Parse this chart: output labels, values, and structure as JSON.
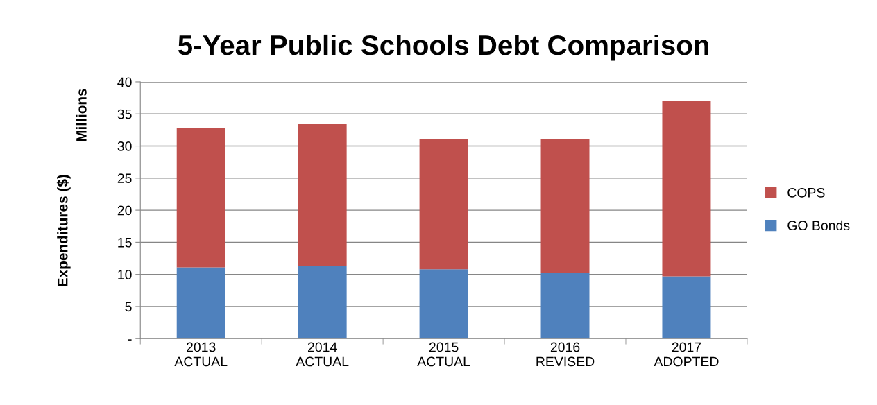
{
  "chart_data": {
    "type": "bar",
    "title": "5-Year Public Schools Debt Comparison",
    "ylabel": "Expenditures ($)",
    "annotations": [
      "Millions"
    ],
    "categories": [
      "2013\nACTUAL",
      "2014\nACTUAL",
      "2015\nACTUAL",
      "2016\nREVISED",
      "2017\nADOPTED"
    ],
    "stacked": true,
    "series": [
      {
        "name": "GO Bonds",
        "color": "#4f81bd",
        "values": [
          11.1,
          11.3,
          10.8,
          10.3,
          9.7
        ]
      },
      {
        "name": "COPS",
        "color": "#c0504d",
        "values": [
          21.7,
          22.1,
          20.3,
          20.8,
          27.3
        ]
      }
    ],
    "ylim": [
      0,
      40
    ],
    "yticks": [
      {
        "value": 0,
        "label": "-"
      },
      5,
      10,
      15,
      20,
      25,
      30,
      35,
      40
    ],
    "grid": "y",
    "legend": "right"
  }
}
